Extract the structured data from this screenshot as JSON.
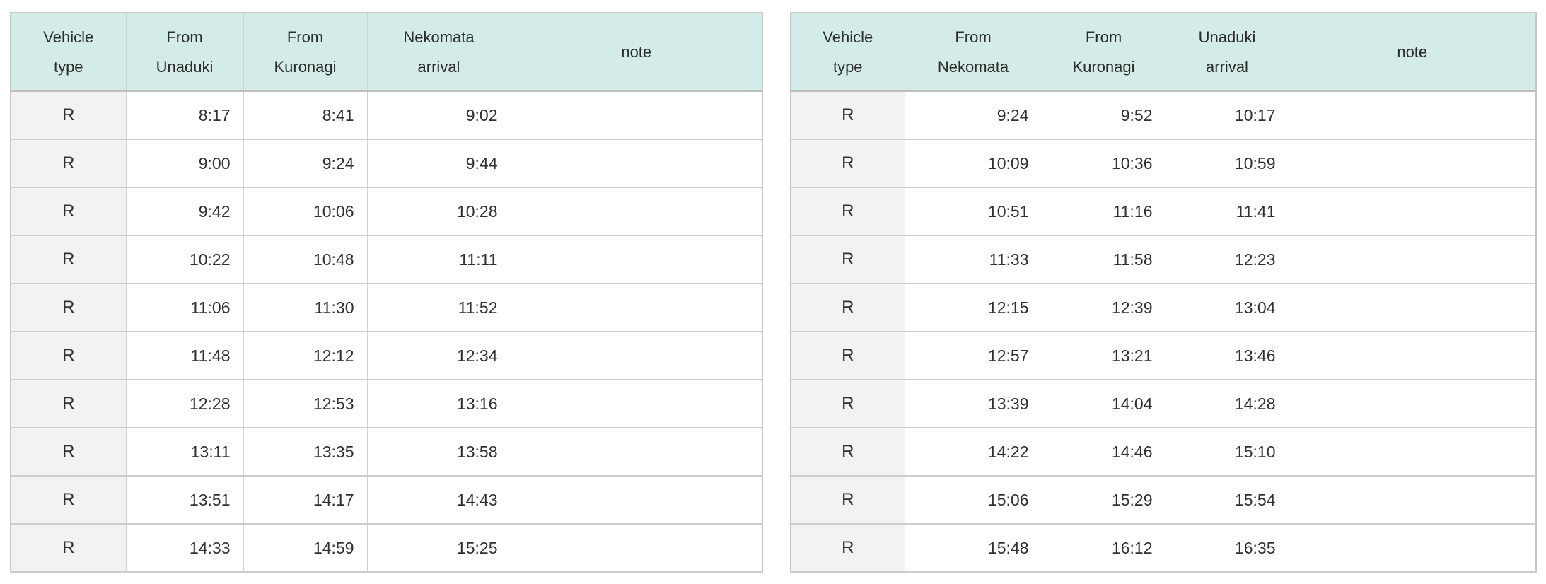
{
  "colors": {
    "header_bg": "#d4ece7",
    "vehicle_column_bg": "#f2f2f2",
    "border": "#cccccc",
    "text": "#303030"
  },
  "left_table": {
    "headers": [
      "Vehicle\ntype",
      "From\nUnaduki",
      "From\nKuronagi",
      "Nekomata\narrival",
      "note"
    ],
    "rows": [
      [
        "R",
        "8:17",
        "8:41",
        "9:02",
        ""
      ],
      [
        "R",
        "9:00",
        "9:24",
        "9:44",
        ""
      ],
      [
        "R",
        "9:42",
        "10:06",
        "10:28",
        ""
      ],
      [
        "R",
        "10:22",
        "10:48",
        "11:11",
        ""
      ],
      [
        "R",
        "11:06",
        "11:30",
        "11:52",
        ""
      ],
      [
        "R",
        "11:48",
        "12:12",
        "12:34",
        ""
      ],
      [
        "R",
        "12:28",
        "12:53",
        "13:16",
        ""
      ],
      [
        "R",
        "13:11",
        "13:35",
        "13:58",
        ""
      ],
      [
        "R",
        "13:51",
        "14:17",
        "14:43",
        ""
      ],
      [
        "R",
        "14:33",
        "14:59",
        "15:25",
        ""
      ]
    ]
  },
  "right_table": {
    "headers": [
      "Vehicle\ntype",
      "From\nNekomata",
      "From\nKuronagi",
      "Unaduki\narrival",
      "note"
    ],
    "rows": [
      [
        "R",
        "9:24",
        "9:52",
        "10:17",
        ""
      ],
      [
        "R",
        "10:09",
        "10:36",
        "10:59",
        ""
      ],
      [
        "R",
        "10:51",
        "11:16",
        "11:41",
        ""
      ],
      [
        "R",
        "11:33",
        "11:58",
        "12:23",
        ""
      ],
      [
        "R",
        "12:15",
        "12:39",
        "13:04",
        ""
      ],
      [
        "R",
        "12:57",
        "13:21",
        "13:46",
        ""
      ],
      [
        "R",
        "13:39",
        "14:04",
        "14:28",
        ""
      ],
      [
        "R",
        "14:22",
        "14:46",
        "15:10",
        ""
      ],
      [
        "R",
        "15:06",
        "15:29",
        "15:54",
        ""
      ],
      [
        "R",
        "15:48",
        "16:12",
        "16:35",
        ""
      ]
    ]
  }
}
